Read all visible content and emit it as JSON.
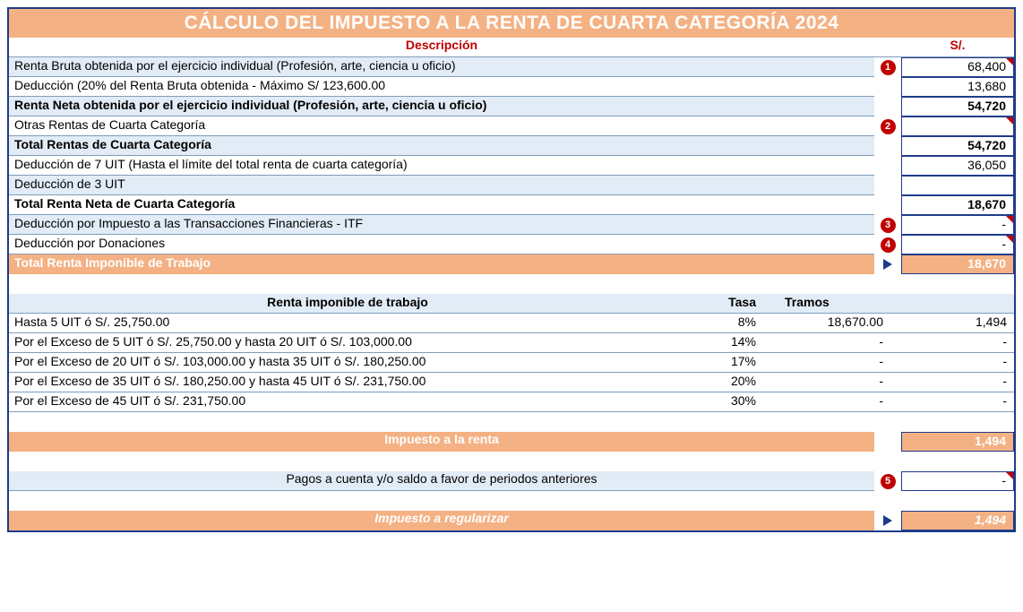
{
  "colors": {
    "header_bg": "#f4b183",
    "header_text": "#ffffff",
    "accent_red": "#c00000",
    "border_blue": "#1f3b8a",
    "band_light_blue": "#e2ecf6",
    "grid_line": "#7f9db9"
  },
  "title": "CÁLCULO DEL IMPUESTO A LA RENTA DE CUARTA CATEGORÍA 2024",
  "header": {
    "desc": "Descripción",
    "value": "S/."
  },
  "rows": [
    {
      "desc": "Renta Bruta obtenida por el ejercicio individual (Profesión, arte, ciencia u oficio)",
      "badge": "1",
      "value": "68,400",
      "bold": false,
      "input_mark": true
    },
    {
      "desc": "Deducción (20% del Renta Bruta obtenida - Máximo S/ 123,600.00",
      "badge": "",
      "value": "13,680",
      "bold": false,
      "input_mark": false
    },
    {
      "desc": "Renta Neta obtenida por el ejercicio individual (Profesión, arte, ciencia u oficio)",
      "badge": "",
      "value": "54,720",
      "bold": true,
      "input_mark": false
    },
    {
      "desc": "Otras Rentas de Cuarta Categoría",
      "badge": "2",
      "value": "",
      "bold": false,
      "input_mark": true
    },
    {
      "desc": "Total Rentas de Cuarta Categoría",
      "badge": "",
      "value": "54,720",
      "bold": true,
      "input_mark": false
    },
    {
      "desc": "Deducción de 7 UIT (Hasta el límite del total renta de cuarta categoría)",
      "badge": "",
      "value": "36,050",
      "bold": false,
      "input_mark": false
    },
    {
      "desc": "Deducción de 3 UIT",
      "badge": "",
      "value": "",
      "bold": false,
      "input_mark": false
    },
    {
      "desc": "Total Renta Neta de Cuarta Categoría",
      "badge": "",
      "value": "18,670",
      "bold": true,
      "input_mark": false
    },
    {
      "desc": "Deducción por Impuesto a las Transacciones Financieras - ITF",
      "badge": "3",
      "value": "-",
      "bold": false,
      "input_mark": true
    },
    {
      "desc": "Deducción por Donaciones",
      "badge": "4",
      "value": "-",
      "bold": false,
      "input_mark": true
    }
  ],
  "total_row": {
    "desc": "Total Renta Imponible de Trabajo",
    "value": "18,670"
  },
  "brackets": {
    "header": {
      "desc": "Renta imponible de trabajo",
      "tasa": "Tasa",
      "tramos": "Tramos",
      "value": ""
    },
    "rows": [
      {
        "desc": "Hasta 5 UIT ó S/. 25,750.00",
        "tasa": "8%",
        "tramos": "18,670.00",
        "value": "1,494"
      },
      {
        "desc": "Por el Exceso de 5 UIT ó S/. 25,750.00 y hasta 20 UIT ó S/. 103,000.00",
        "tasa": "14%",
        "tramos": "-",
        "value": "-"
      },
      {
        "desc": "Por el Exceso de 20 UIT ó S/. 103,000.00 y hasta 35 UIT ó S/. 180,250.00",
        "tasa": "17%",
        "tramos": "-",
        "value": "-"
      },
      {
        "desc": "Por el Exceso de 35 UIT ó S/. 180,250.00 y hasta 45 UIT ó S/. 231,750.00",
        "tasa": "20%",
        "tramos": "-",
        "value": "-"
      },
      {
        "desc": "Por el Exceso de 45 UIT ó S/. 231,750.00",
        "tasa": "30%",
        "tramos": "-",
        "value": "-"
      }
    ]
  },
  "tax": {
    "label": "Impuesto a la renta",
    "value": "1,494"
  },
  "payments": {
    "label": "Pagos a cuenta y/o saldo a favor de periodos anteriores",
    "badge": "5",
    "value": "-"
  },
  "regularize": {
    "label": "Impuesto a regularizar",
    "value": "1,494"
  }
}
